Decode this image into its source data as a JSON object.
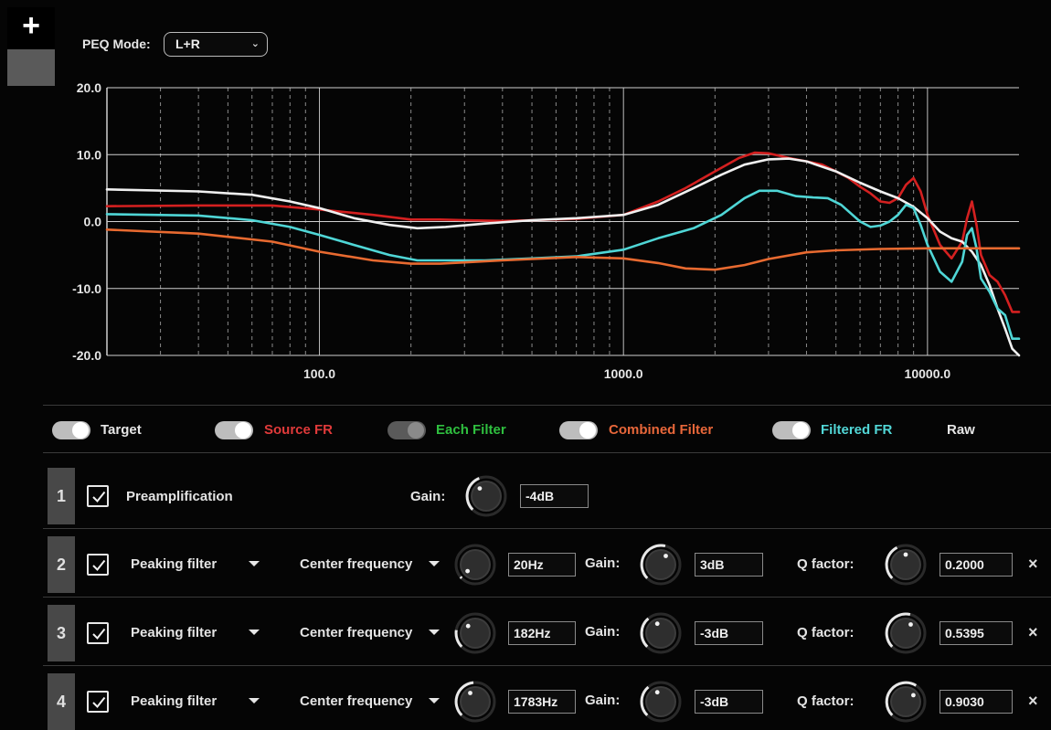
{
  "toolbar": {
    "add_label": "+"
  },
  "peq_mode": {
    "label": "PEQ Mode:",
    "value": "L+R"
  },
  "chart_data": {
    "type": "line",
    "xscale": "log",
    "xlim": [
      20,
      20000
    ],
    "ylim": [
      -20,
      20
    ],
    "y_ticks": [
      20,
      10,
      0,
      -10,
      -20
    ],
    "y_tick_labels": [
      "20.0",
      "10.0",
      "0.0",
      "-10.0",
      "-20.0"
    ],
    "x_ticks": [
      100,
      1000,
      10000
    ],
    "x_tick_labels": [
      "100.0",
      "1000.0",
      "10000.0"
    ],
    "grid": true,
    "series": [
      {
        "name": "Source FR",
        "color": "#d42020",
        "x": [
          20,
          40,
          70,
          100,
          150,
          200,
          250,
          300,
          400,
          500,
          700,
          1000,
          1300,
          1600,
          2000,
          2400,
          2700,
          3000,
          3500,
          4000,
          4500,
          5000,
          5500,
          6000,
          6500,
          7000,
          7500,
          8000,
          8500,
          9000,
          9500,
          10000,
          11000,
          12000,
          13000,
          13500,
          14000,
          14500,
          15000,
          16000,
          17000,
          18000,
          19000,
          20000
        ],
        "y": [
          2.3,
          2.4,
          2.4,
          1.8,
          1.0,
          0.3,
          0.3,
          0.2,
          0.1,
          0.2,
          0.4,
          1.0,
          3.0,
          5.0,
          7.5,
          9.5,
          10.3,
          10.2,
          9.5,
          9.0,
          8.5,
          7.5,
          6.5,
          5.2,
          4.2,
          3.0,
          2.8,
          3.5,
          5.5,
          6.5,
          4.5,
          1.0,
          -3.5,
          -5.5,
          -3.0,
          0.5,
          3.0,
          -0.5,
          -5.0,
          -8.0,
          -9.0,
          -11.0,
          -13.5,
          -13.5
        ]
      },
      {
        "name": "Target",
        "color": "#f0f0f0",
        "x": [
          20,
          40,
          60,
          80,
          100,
          130,
          170,
          210,
          260,
          350,
          500,
          700,
          1000,
          1300,
          1700,
          2100,
          2500,
          3000,
          3500,
          4000,
          5000,
          6000,
          7000,
          8000,
          9000,
          10000,
          11000,
          12000,
          13000,
          14000,
          15000,
          16000,
          17000,
          18000,
          19000,
          20000
        ],
        "y": [
          4.8,
          4.5,
          4.0,
          3.0,
          2.0,
          0.5,
          -0.5,
          -1.0,
          -0.8,
          -0.3,
          0.2,
          0.5,
          1.0,
          2.5,
          5.0,
          7.0,
          8.5,
          9.3,
          9.4,
          9.0,
          7.5,
          5.8,
          4.5,
          3.5,
          2.2,
          0.5,
          -1.5,
          -2.5,
          -3.0,
          -4.5,
          -6.5,
          -9.5,
          -13.0,
          -16.0,
          -19.0,
          -20.0
        ]
      },
      {
        "name": "Filtered FR",
        "color": "#4fd6d6",
        "x": [
          20,
          40,
          60,
          80,
          100,
          130,
          170,
          210,
          260,
          350,
          500,
          700,
          1000,
          1300,
          1700,
          2100,
          2500,
          2800,
          3200,
          3700,
          4200,
          4700,
          5200,
          6000,
          6500,
          7000,
          7500,
          8000,
          8500,
          9000,
          9500,
          10000,
          11000,
          12000,
          13000,
          13500,
          14000,
          14500,
          15000,
          16000,
          17000,
          18000,
          19000,
          20000
        ],
        "y": [
          1.1,
          0.9,
          0.2,
          -0.8,
          -2.0,
          -3.5,
          -5.0,
          -5.8,
          -5.8,
          -5.8,
          -5.5,
          -5.2,
          -4.2,
          -2.5,
          -1.0,
          1.0,
          3.5,
          4.6,
          4.6,
          3.8,
          3.6,
          3.5,
          2.5,
          0.0,
          -0.8,
          -0.6,
          0.0,
          1.0,
          2.5,
          2.0,
          -0.5,
          -3.5,
          -7.5,
          -9.0,
          -6.0,
          -2.0,
          -1.0,
          -4.0,
          -8.5,
          -10.5,
          -13.0,
          -14.0,
          -17.5,
          -17.5
        ]
      },
      {
        "name": "Combined Filter",
        "color": "#e86a30",
        "x": [
          20,
          40,
          70,
          100,
          150,
          200,
          250,
          300,
          400,
          500,
          700,
          1000,
          1300,
          1600,
          2000,
          2500,
          3000,
          4000,
          5000,
          7000,
          10000,
          15000,
          20000
        ],
        "y": [
          -1.2,
          -1.8,
          -3.0,
          -4.5,
          -5.8,
          -6.3,
          -6.3,
          -6.1,
          -5.8,
          -5.6,
          -5.3,
          -5.5,
          -6.2,
          -7.0,
          -7.2,
          -6.5,
          -5.6,
          -4.6,
          -4.3,
          -4.1,
          -4.0,
          -4.0,
          -4.0
        ]
      }
    ]
  },
  "legend": {
    "items": [
      {
        "label": "Target",
        "color": "#e6e6e6",
        "on": true
      },
      {
        "label": "Source FR",
        "color": "#e03a3a",
        "on": true
      },
      {
        "label": "Each Filter",
        "color": "#2fbf3f",
        "on": false
      },
      {
        "label": "Combined Filter",
        "color": "#e8673a",
        "on": true
      },
      {
        "label": "Filtered FR",
        "color": "#52d7d7",
        "on": true
      }
    ],
    "raw_label": "Raw"
  },
  "filters": {
    "preamp": {
      "index": "1",
      "label": "Preamplification",
      "gain_label": "Gain:",
      "gain": "-4dB"
    },
    "rows": [
      {
        "index": "2",
        "type": "Peaking filter",
        "center_label": "Center frequency",
        "freq": "20Hz",
        "gain_label": "Gain:",
        "gain": "3dB",
        "q_label": "Q factor:",
        "q": "0.2000"
      },
      {
        "index": "3",
        "type": "Peaking filter",
        "center_label": "Center frequency",
        "freq": "182Hz",
        "gain_label": "Gain:",
        "gain": "-3dB",
        "q_label": "Q factor:",
        "q": "0.5395"
      },
      {
        "index": "4",
        "type": "Peaking filter",
        "center_label": "Center frequency",
        "freq": "1783Hz",
        "gain_label": "Gain:",
        "gain": "-3dB",
        "q_label": "Q factor:",
        "q": "0.9030"
      }
    ],
    "close_label": "×"
  }
}
